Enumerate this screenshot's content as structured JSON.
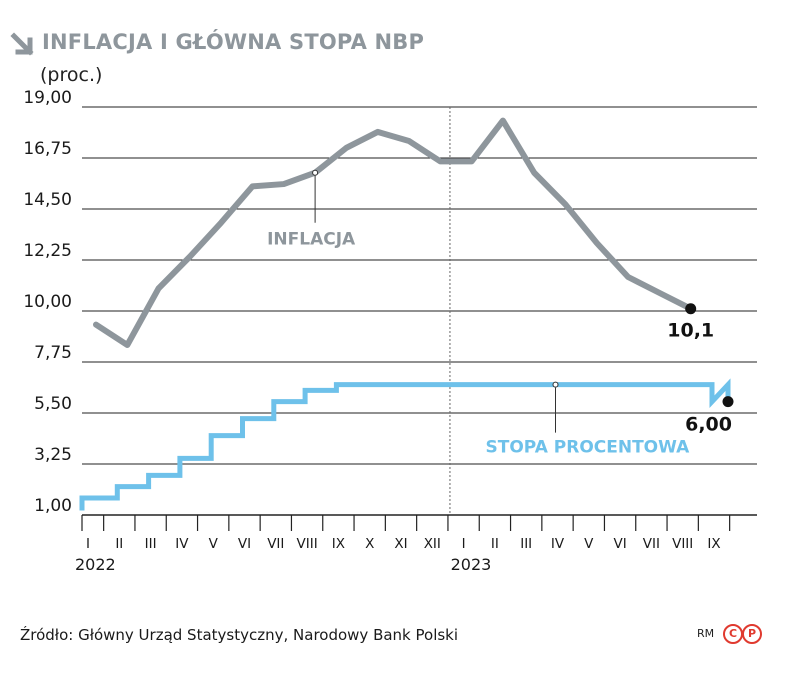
{
  "header": {
    "title": "INFLACJA I GŁÓWNA STOPA NBP",
    "unit": "(proc.)",
    "icon": "arrow-down-right-icon"
  },
  "footer": {
    "source": "Źródło: Główny Urząd Statystyczny, Narodowy Bank Polski",
    "credit": "RM",
    "logo_letters": [
      "C",
      "P"
    ],
    "logo_color": "#e03a2f"
  },
  "chart_data": {
    "type": "line",
    "title": "INFLACJA I GŁÓWNA STOPA NBP",
    "ylabel": "(proc.)",
    "ylim": [
      1.0,
      19.0
    ],
    "yticks": [
      "19,00",
      "16,75",
      "14,50",
      "12,25",
      "10,00",
      "7,75",
      "5,50",
      "3,25",
      "1,00"
    ],
    "ytick_values": [
      19.0,
      16.75,
      14.5,
      12.25,
      10.0,
      7.75,
      5.5,
      3.25,
      1.0
    ],
    "grid": "horizontal",
    "month_labels": [
      "I",
      "II",
      "III",
      "IV",
      "V",
      "VI",
      "VII",
      "VIII",
      "IX",
      "X",
      "XI",
      "XII",
      "I",
      "II",
      "III",
      "IV",
      "V",
      "VI",
      "VII",
      "VIII",
      "IX"
    ],
    "year_labels": [
      {
        "label": "2022",
        "month_index": 0
      },
      {
        "label": "2023",
        "month_index": 12
      }
    ],
    "year_divider_index": 12,
    "series": [
      {
        "name": "INFLACJA",
        "color": "#8e969c",
        "step": false,
        "x": [
          "2022-01",
          "2022-02",
          "2022-03",
          "2022-04",
          "2022-05",
          "2022-06",
          "2022-07",
          "2022-08",
          "2022-09",
          "2022-10",
          "2022-11",
          "2022-12",
          "2023-01",
          "2023-02",
          "2023-03",
          "2023-04",
          "2023-05",
          "2023-06",
          "2023-07",
          "2023-08"
        ],
        "values": [
          9.4,
          8.5,
          11.0,
          12.4,
          13.9,
          15.5,
          15.6,
          16.1,
          17.2,
          17.9,
          17.5,
          16.6,
          16.6,
          18.4,
          16.1,
          14.7,
          13.0,
          11.5,
          10.8,
          10.1
        ],
        "end_label": "10,1"
      },
      {
        "name": "STOPA PROCENTOWA",
        "color": "#6ec1ea",
        "step": true,
        "x": [
          "2022-01",
          "2022-02",
          "2022-03",
          "2022-04",
          "2022-05",
          "2022-06",
          "2022-07",
          "2022-08",
          "2022-09",
          "2022-10",
          "2022-11",
          "2022-12",
          "2023-01",
          "2023-02",
          "2023-03",
          "2023-04",
          "2023-05",
          "2023-06",
          "2023-07",
          "2023-08",
          "2023-09"
        ],
        "values": [
          1.75,
          2.25,
          2.75,
          3.5,
          4.5,
          5.25,
          6.0,
          6.5,
          6.75,
          6.75,
          6.75,
          6.75,
          6.75,
          6.75,
          6.75,
          6.75,
          6.75,
          6.75,
          6.75,
          6.75,
          6.0
        ],
        "start_value": 1.0,
        "end_label": "6,00"
      }
    ]
  }
}
